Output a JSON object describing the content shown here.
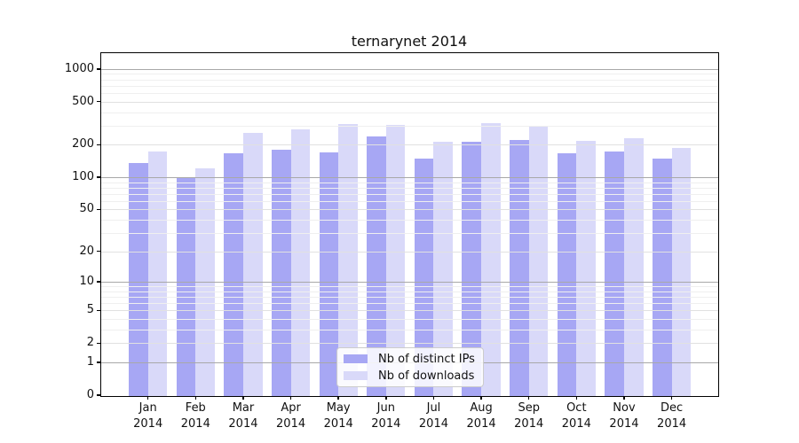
{
  "title": "ternarynet 2014",
  "legend": {
    "items": [
      {
        "label": "Nb of distinct IPs",
        "color": "#a7a7f4"
      },
      {
        "label": "Nb of downloads",
        "color": "#d9d9f9"
      }
    ]
  },
  "chart_data": {
    "type": "bar",
    "title": "ternarynet 2014",
    "categories": [
      "Jan",
      "Feb",
      "Mar",
      "Apr",
      "May",
      "Jun",
      "Jul",
      "Aug",
      "Sep",
      "Oct",
      "Nov",
      "Dec"
    ],
    "year": "2014",
    "series": [
      {
        "name": "Nb of distinct IPs",
        "color": "#a7a7f4",
        "values": [
          137,
          100,
          171,
          184,
          173,
          245,
          153,
          216,
          227,
          170,
          176,
          151
        ]
      },
      {
        "name": "Nb of downloads",
        "color": "#d9d9f9",
        "values": [
          177,
          124,
          262,
          281,
          318,
          310,
          216,
          321,
          299,
          220,
          232,
          191
        ]
      }
    ],
    "y_axis": {
      "scale": "log(v+1)",
      "ticks": [
        0,
        1,
        2,
        5,
        10,
        20,
        50,
        100,
        200,
        500,
        1000
      ],
      "major_gridlines": [
        1,
        10,
        100,
        1000
      ],
      "sub_gridlines": [
        2,
        5,
        20,
        50,
        200,
        500
      ],
      "minor_gridlines": [
        3,
        4,
        6,
        7,
        8,
        9,
        30,
        40,
        60,
        70,
        80,
        90,
        300,
        400,
        600,
        700,
        800,
        900
      ],
      "ylim": [
        0,
        1400
      ]
    },
    "grid": true,
    "legend_position": "lower center",
    "grid_color_major": "#a8a8a8",
    "grid_color_sub": "#e1e1e1",
    "grid_color_minor": "#efefef"
  }
}
